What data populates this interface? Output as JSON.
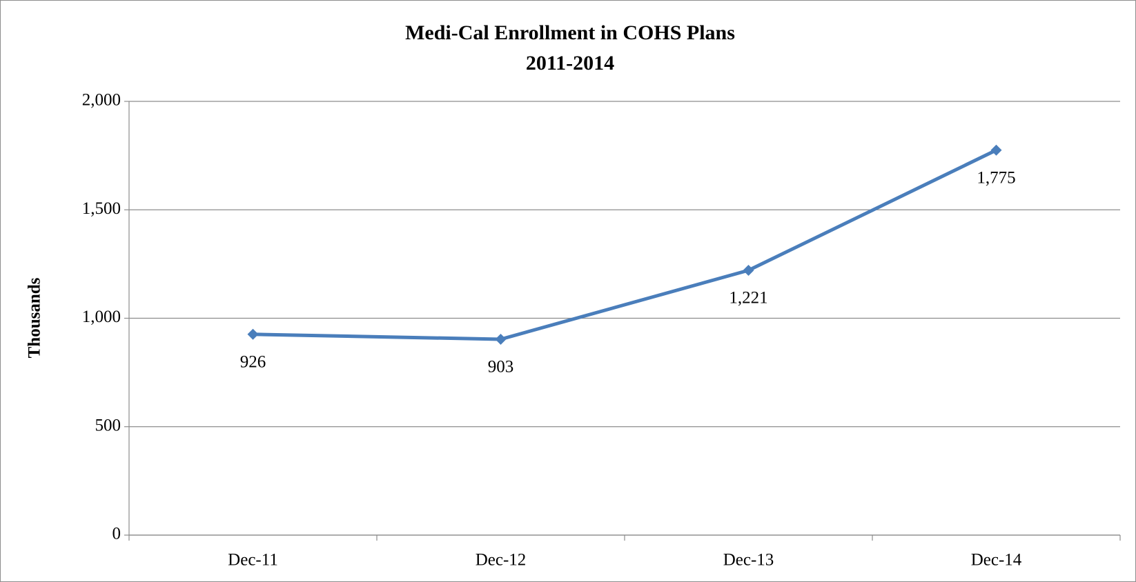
{
  "chart_data": {
    "type": "line",
    "title": "Medi-Cal Enrollment in COHS Plans",
    "subtitle": "2011-2014",
    "y_label": "Thousands",
    "categories": [
      "Dec-11",
      "Dec-12",
      "Dec-13",
      "Dec-14"
    ],
    "values": [
      926,
      903,
      1221,
      1775
    ],
    "value_labels": [
      "926",
      "903",
      "1,221",
      "1,775"
    ],
    "color": "#4a7ebb",
    "ylim": [
      0,
      2000
    ],
    "yticks": [
      0,
      500,
      {
        "value": 1000,
        "label": "1,000"
      },
      {
        "value": 1500,
        "label": "1,500"
      },
      {
        "value": 2000,
        "label": "2,000"
      }
    ],
    "grid": true
  }
}
